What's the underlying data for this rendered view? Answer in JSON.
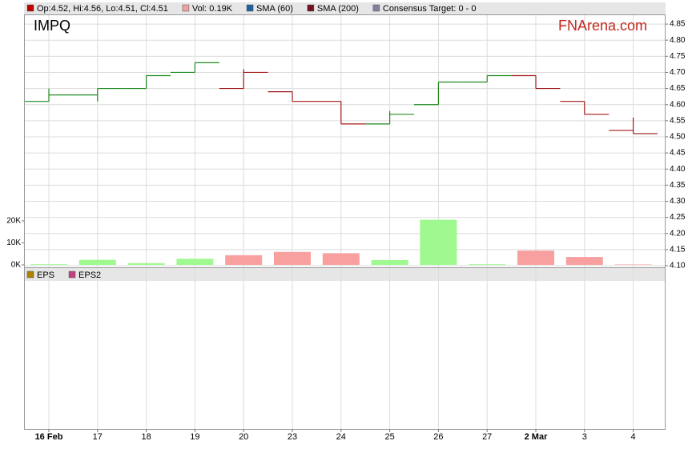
{
  "chart_data": {
    "type": "ohlc",
    "title": "IMPQ",
    "watermark": "FNArena.com",
    "legend": [
      {
        "text": "Op:4.52, Hi:4.56, Lo:4.51, Cl:4.51",
        "color": "#c00000"
      },
      {
        "text": "Vol: 0.19K",
        "color": "#f0a0a0"
      },
      {
        "text": "SMA (60)",
        "color": "#2060a0"
      },
      {
        "text": "SMA (200)",
        "color": "#701020"
      },
      {
        "text": "Consensus Target: 0 - 0",
        "color": "#8080a0"
      }
    ],
    "lower_legend": [
      {
        "text": "EPS",
        "color": "#b08000"
      },
      {
        "text": "EPS2",
        "color": "#c04080"
      }
    ],
    "categories": [
      "16 Feb",
      "17",
      "18",
      "19",
      "20",
      "23",
      "24",
      "25",
      "26",
      "27",
      "2 Mar",
      "3",
      "4"
    ],
    "open": [
      4.61,
      4.63,
      4.65,
      4.7,
      4.65,
      4.64,
      4.61,
      4.54,
      4.6,
      4.67,
      4.69,
      4.61,
      4.52
    ],
    "high": [
      4.65,
      4.65,
      4.69,
      4.73,
      4.71,
      4.64,
      4.61,
      4.58,
      4.67,
      4.69,
      4.69,
      4.61,
      4.56
    ],
    "low": [
      4.61,
      4.61,
      4.65,
      4.7,
      4.65,
      4.61,
      4.54,
      4.54,
      4.6,
      4.67,
      4.65,
      4.57,
      4.51
    ],
    "close": [
      4.63,
      4.65,
      4.69,
      4.73,
      4.7,
      4.61,
      4.54,
      4.57,
      4.67,
      4.69,
      4.65,
      4.57,
      4.51
    ],
    "up_color": "#1f8a1f",
    "down_color": "#a01818",
    "ylim": [
      4.095,
      4.88
    ],
    "yticks": [
      {
        "value": 4.1,
        "label": "4.10"
      },
      4.15,
      {
        "value": 4.2,
        "label": "4.20"
      },
      4.25,
      {
        "value": 4.3,
        "label": "4.30"
      },
      4.35,
      {
        "value": 4.4,
        "label": "4.40"
      },
      4.45,
      {
        "value": 4.5,
        "label": "4.50"
      },
      4.55,
      {
        "value": 4.6,
        "label": "4.60"
      },
      4.65,
      {
        "value": 4.7,
        "label": "4.70"
      },
      4.75,
      {
        "value": 4.8,
        "label": "4.80"
      },
      4.85
    ],
    "grid": true,
    "volume": {
      "values": [
        0.3,
        2.3,
        0.8,
        2.8,
        4.4,
        5.9,
        5.3,
        2.2,
        20.5,
        0.3,
        6.5,
        3.6,
        0.19
      ],
      "up_color": "#a0f890",
      "down_color": "#f8a0a0",
      "ylim": [
        -1.1,
        113.8
      ],
      "yticks": [
        {
          "value": 0,
          "label": "0K"
        },
        {
          "value": 10,
          "label": "10K"
        },
        {
          "value": 20,
          "label": "20K"
        }
      ]
    }
  }
}
